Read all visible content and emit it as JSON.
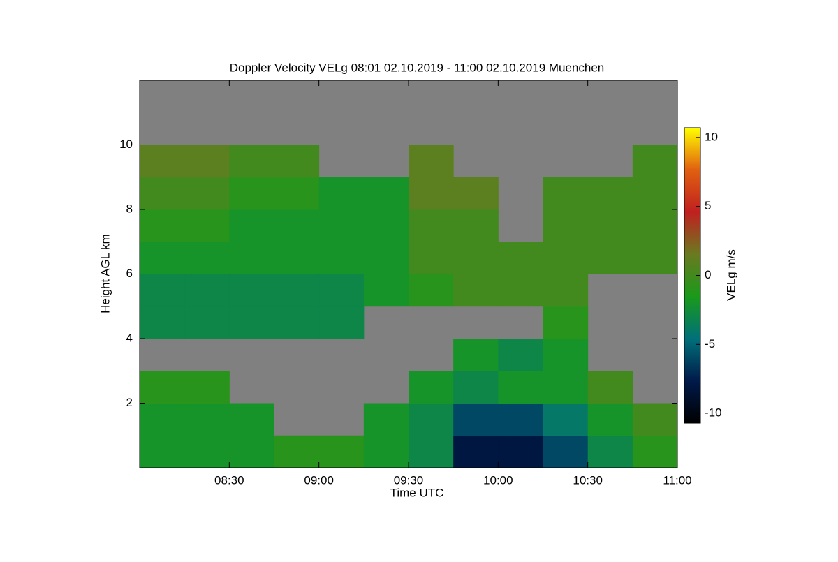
{
  "chart_data": {
    "type": "heatmap",
    "title": "Doppler Velocity VELg   08:01 02.10.2019 - 11:00 02.10.2019 Muenchen",
    "x_label": "Time UTC",
    "y_label": "Height AGL km",
    "colorbar_label": "VELg m/s",
    "x": [
      8.0,
      8.25,
      8.5,
      8.75,
      9.0,
      9.25,
      9.5,
      9.75,
      10.0,
      10.25,
      10.5,
      10.75,
      11.0
    ],
    "y": [
      0,
      1,
      2,
      3,
      4,
      5,
      6,
      7,
      8,
      9,
      10,
      11,
      12
    ],
    "z": [
      [
        -2,
        -2,
        -2,
        -1,
        -1,
        -2,
        -3,
        -8,
        -8,
        -6,
        -3,
        -1
      ],
      [
        -2,
        -2,
        -2,
        null,
        null,
        -2,
        -3,
        -6,
        -6,
        -4,
        -2,
        0
      ],
      [
        -1,
        -1,
        null,
        null,
        null,
        null,
        -2,
        -3,
        -2,
        -2,
        0,
        null
      ],
      [
        null,
        null,
        null,
        null,
        null,
        null,
        null,
        -2,
        -3,
        -2,
        null,
        null
      ],
      [
        -3,
        -3,
        -3,
        -3,
        -3,
        null,
        null,
        null,
        null,
        -1,
        null,
        null
      ],
      [
        -3,
        -3,
        -3,
        -3,
        -3,
        -2,
        -1,
        0,
        0,
        0,
        null,
        null
      ],
      [
        -2,
        -2,
        -2,
        -2,
        -2,
        -2,
        0,
        0,
        0,
        0,
        0,
        0
      ],
      [
        -1,
        -1,
        -2,
        -2,
        -2,
        -2,
        0,
        0,
        null,
        0,
        0,
        0
      ],
      [
        0,
        0,
        -1,
        -1,
        -2,
        -2,
        1,
        1,
        null,
        0,
        0,
        0
      ],
      [
        1,
        1,
        0,
        0,
        null,
        null,
        1,
        null,
        null,
        null,
        null,
        0
      ],
      [
        null,
        null,
        null,
        null,
        null,
        null,
        null,
        null,
        null,
        null,
        null,
        null
      ],
      [
        null,
        null,
        null,
        null,
        null,
        null,
        null,
        null,
        null,
        null,
        null,
        null
      ]
    ],
    "xlim": [
      8.0,
      11.0
    ],
    "ylim": [
      0,
      12
    ],
    "xticks": [
      {
        "value": 8.5,
        "label": "08:30"
      },
      {
        "value": 9.0,
        "label": "09:00"
      },
      {
        "value": 9.5,
        "label": "09:30"
      },
      {
        "value": 10.0,
        "label": "10:00"
      },
      {
        "value": 10.5,
        "label": "10:30"
      },
      {
        "value": 11.0,
        "label": "11:00"
      }
    ],
    "yticks": [
      2,
      4,
      6,
      8,
      10
    ],
    "clim": [
      -10.7,
      10.7
    ],
    "cticks": [
      10,
      5,
      0,
      -5,
      -10
    ],
    "colormap": [
      "#000000",
      "#001a4a",
      "#00707a",
      "#1a9a1a",
      "#6a7a20",
      "#c02020",
      "#e06010",
      "#ffff00"
    ],
    "missing_color": "#808080"
  }
}
